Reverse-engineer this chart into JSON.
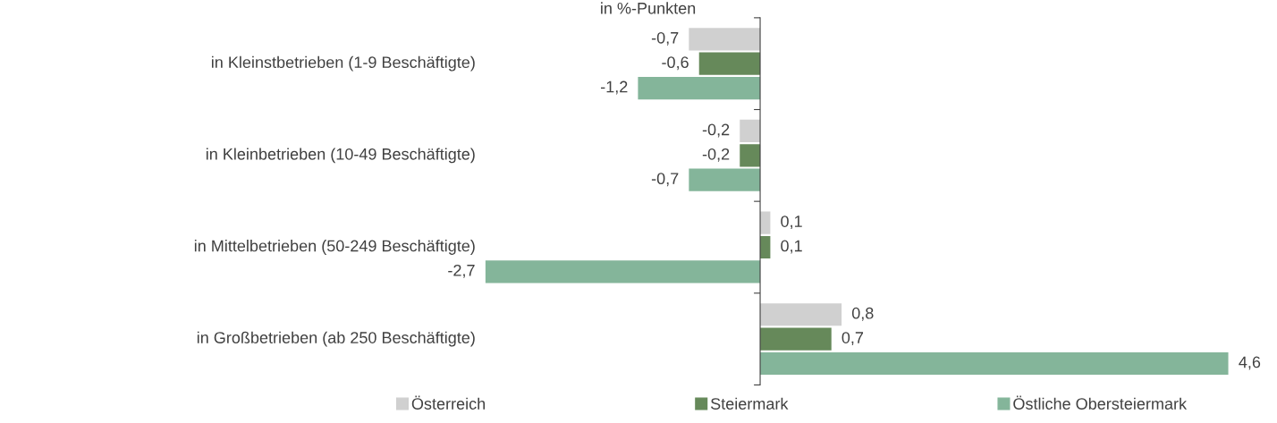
{
  "chart_data": {
    "type": "bar",
    "orientation": "horizontal",
    "annotations": [
      "in %-Punkten"
    ],
    "categories": [
      "in Kleinstbetrieben (1-9 Beschäftigte)",
      "in Kleinbetrieben (10-49 Beschäftigte)",
      "in Mittelbetrieben (50-249 Beschäftigte)",
      "in Großbetrieben (ab 250 Beschäftigte)"
    ],
    "series": [
      {
        "name": "Österreich",
        "color": "#d0d0d0",
        "values": [
          -0.7,
          -0.2,
          0.1,
          0.8
        ],
        "value_labels": [
          "-0,7",
          "-0,2",
          "0,1",
          "0,8"
        ]
      },
      {
        "name": "Steiermark",
        "color": "#66895a",
        "values": [
          -0.6,
          -0.2,
          0.1,
          0.7
        ],
        "value_labels": [
          "-0,6",
          "-0,2",
          "0,1",
          "0,7"
        ]
      },
      {
        "name": "Östliche Obersteiermark",
        "color": "#84b59a",
        "values": [
          -1.2,
          -0.7,
          -2.7,
          4.6
        ],
        "value_labels": [
          "-1,2",
          "-0,7",
          "-2,7",
          "4,6"
        ]
      }
    ],
    "legend": "bottom",
    "grid": false
  }
}
